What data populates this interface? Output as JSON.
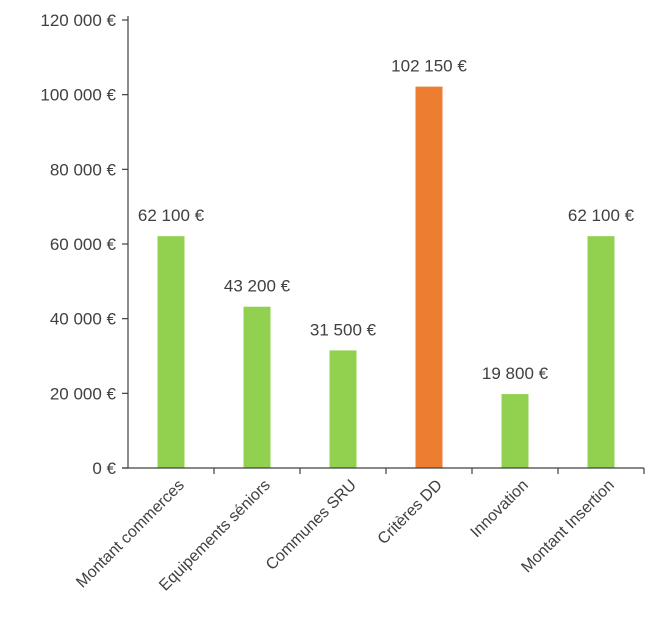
{
  "chart_data": {
    "type": "bar",
    "title": "",
    "xlabel": "",
    "ylabel": "",
    "ylim": [
      0,
      120000
    ],
    "y_ticks": [
      0,
      20000,
      40000,
      60000,
      80000,
      100000,
      120000
    ],
    "y_tick_labels": [
      "0 €",
      "20 000 €",
      "40 000 €",
      "60 000 €",
      "80 000 €",
      "100 000 €",
      "120 000 €"
    ],
    "grid": false,
    "legend": "none",
    "categories": [
      "Montant commerces",
      "Equipements séniors",
      "Communes SRU",
      "Critères DD",
      "Innovation",
      "Montant Insertion"
    ],
    "values": [
      62100,
      43200,
      31500,
      102150,
      19800,
      62100
    ],
    "data_labels": [
      "62 100 €",
      "43 200 €",
      "31 500 €",
      "102 150 €",
      "19 800 €",
      "62 100 €"
    ],
    "colors": [
      "#92d050",
      "#92d050",
      "#92d050",
      "#ed7d31",
      "#92d050",
      "#92d050"
    ]
  }
}
